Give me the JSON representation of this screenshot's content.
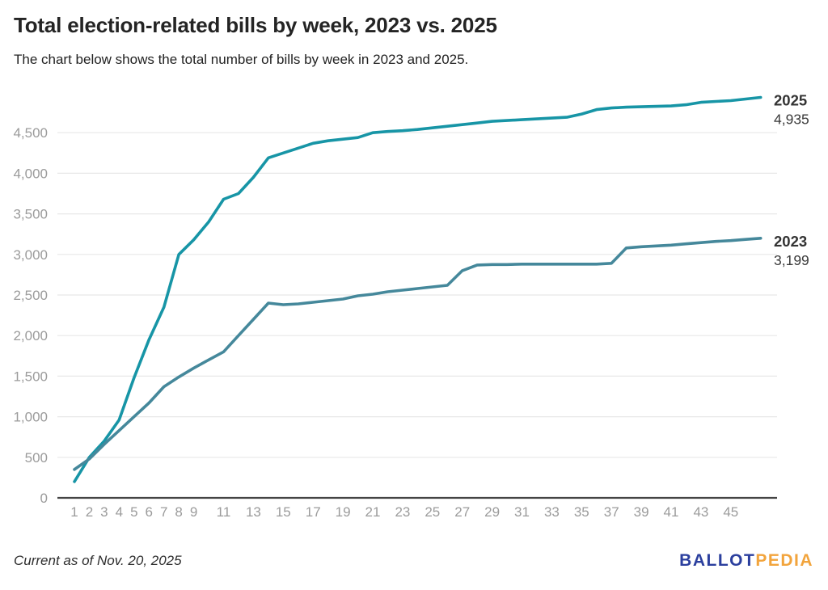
{
  "header": {
    "title": "Total election-related bills by week, 2023 vs. 2025",
    "subtitle": "The chart below shows the total number of bills by week in 2023 and 2025."
  },
  "footer": {
    "note": "Current as of Nov. 20, 2025",
    "logo": {
      "ballot": "BALLOT",
      "pedia": "PEDIA",
      "ballot_color": "#2B3F9E",
      "pedia_color": "#F2A43C"
    }
  },
  "chart_data": {
    "type": "line",
    "title": "Total election-related bills by week, 2023 vs. 2025",
    "xlabel": "",
    "ylabel": "",
    "x": [
      1,
      2,
      3,
      4,
      5,
      6,
      7,
      8,
      9,
      10,
      11,
      12,
      13,
      14,
      15,
      16,
      17,
      18,
      19,
      20,
      21,
      22,
      23,
      24,
      25,
      26,
      27,
      28,
      29,
      30,
      31,
      32,
      33,
      34,
      35,
      36,
      37,
      38,
      39,
      40,
      41,
      42,
      43,
      44,
      45,
      46,
      47
    ],
    "x_ticks": [
      1,
      2,
      3,
      4,
      5,
      6,
      7,
      8,
      9,
      11,
      13,
      15,
      17,
      19,
      21,
      23,
      25,
      27,
      29,
      31,
      33,
      35,
      37,
      39,
      41,
      43,
      45
    ],
    "y_ticks": [
      0,
      500,
      1000,
      1500,
      2000,
      2500,
      3000,
      3500,
      4000,
      4500
    ],
    "ylim": [
      0,
      5000
    ],
    "xlim": [
      1,
      48
    ],
    "grid": "horizontal",
    "legend_position": "right-end-of-line",
    "colors": {
      "grid": "#e8e8e8",
      "axis": "#444444",
      "tick_text": "#9b9b9b",
      "label_text": "#333333"
    },
    "series": [
      {
        "name": "2025",
        "color": "#1795A6",
        "end_value_label": "4,935",
        "final_value": 4935,
        "values": [
          200,
          500,
          700,
          960,
          1480,
          1950,
          2350,
          3000,
          3180,
          3400,
          3680,
          3750,
          3950,
          4190,
          4250,
          4310,
          4370,
          4400,
          4420,
          4440,
          4500,
          4515,
          4525,
          4540,
          4560,
          4580,
          4600,
          4620,
          4640,
          4650,
          4660,
          4670,
          4680,
          4690,
          4730,
          4785,
          4805,
          4815,
          4820,
          4825,
          4830,
          4845,
          4875,
          4885,
          4895,
          4915,
          4935
        ]
      },
      {
        "name": "2023",
        "color": "#45889B",
        "end_value_label": "3,199",
        "final_value": 3199,
        "values": [
          350,
          480,
          660,
          830,
          1000,
          1170,
          1370,
          1490,
          1600,
          1700,
          1800,
          2000,
          2200,
          2400,
          2380,
          2390,
          2410,
          2430,
          2450,
          2490,
          2510,
          2540,
          2560,
          2580,
          2600,
          2620,
          2800,
          2870,
          2875,
          2875,
          2880,
          2880,
          2880,
          2880,
          2880,
          2880,
          2890,
          3080,
          3095,
          3105,
          3115,
          3130,
          3145,
          3160,
          3170,
          3185,
          3199
        ]
      }
    ]
  }
}
